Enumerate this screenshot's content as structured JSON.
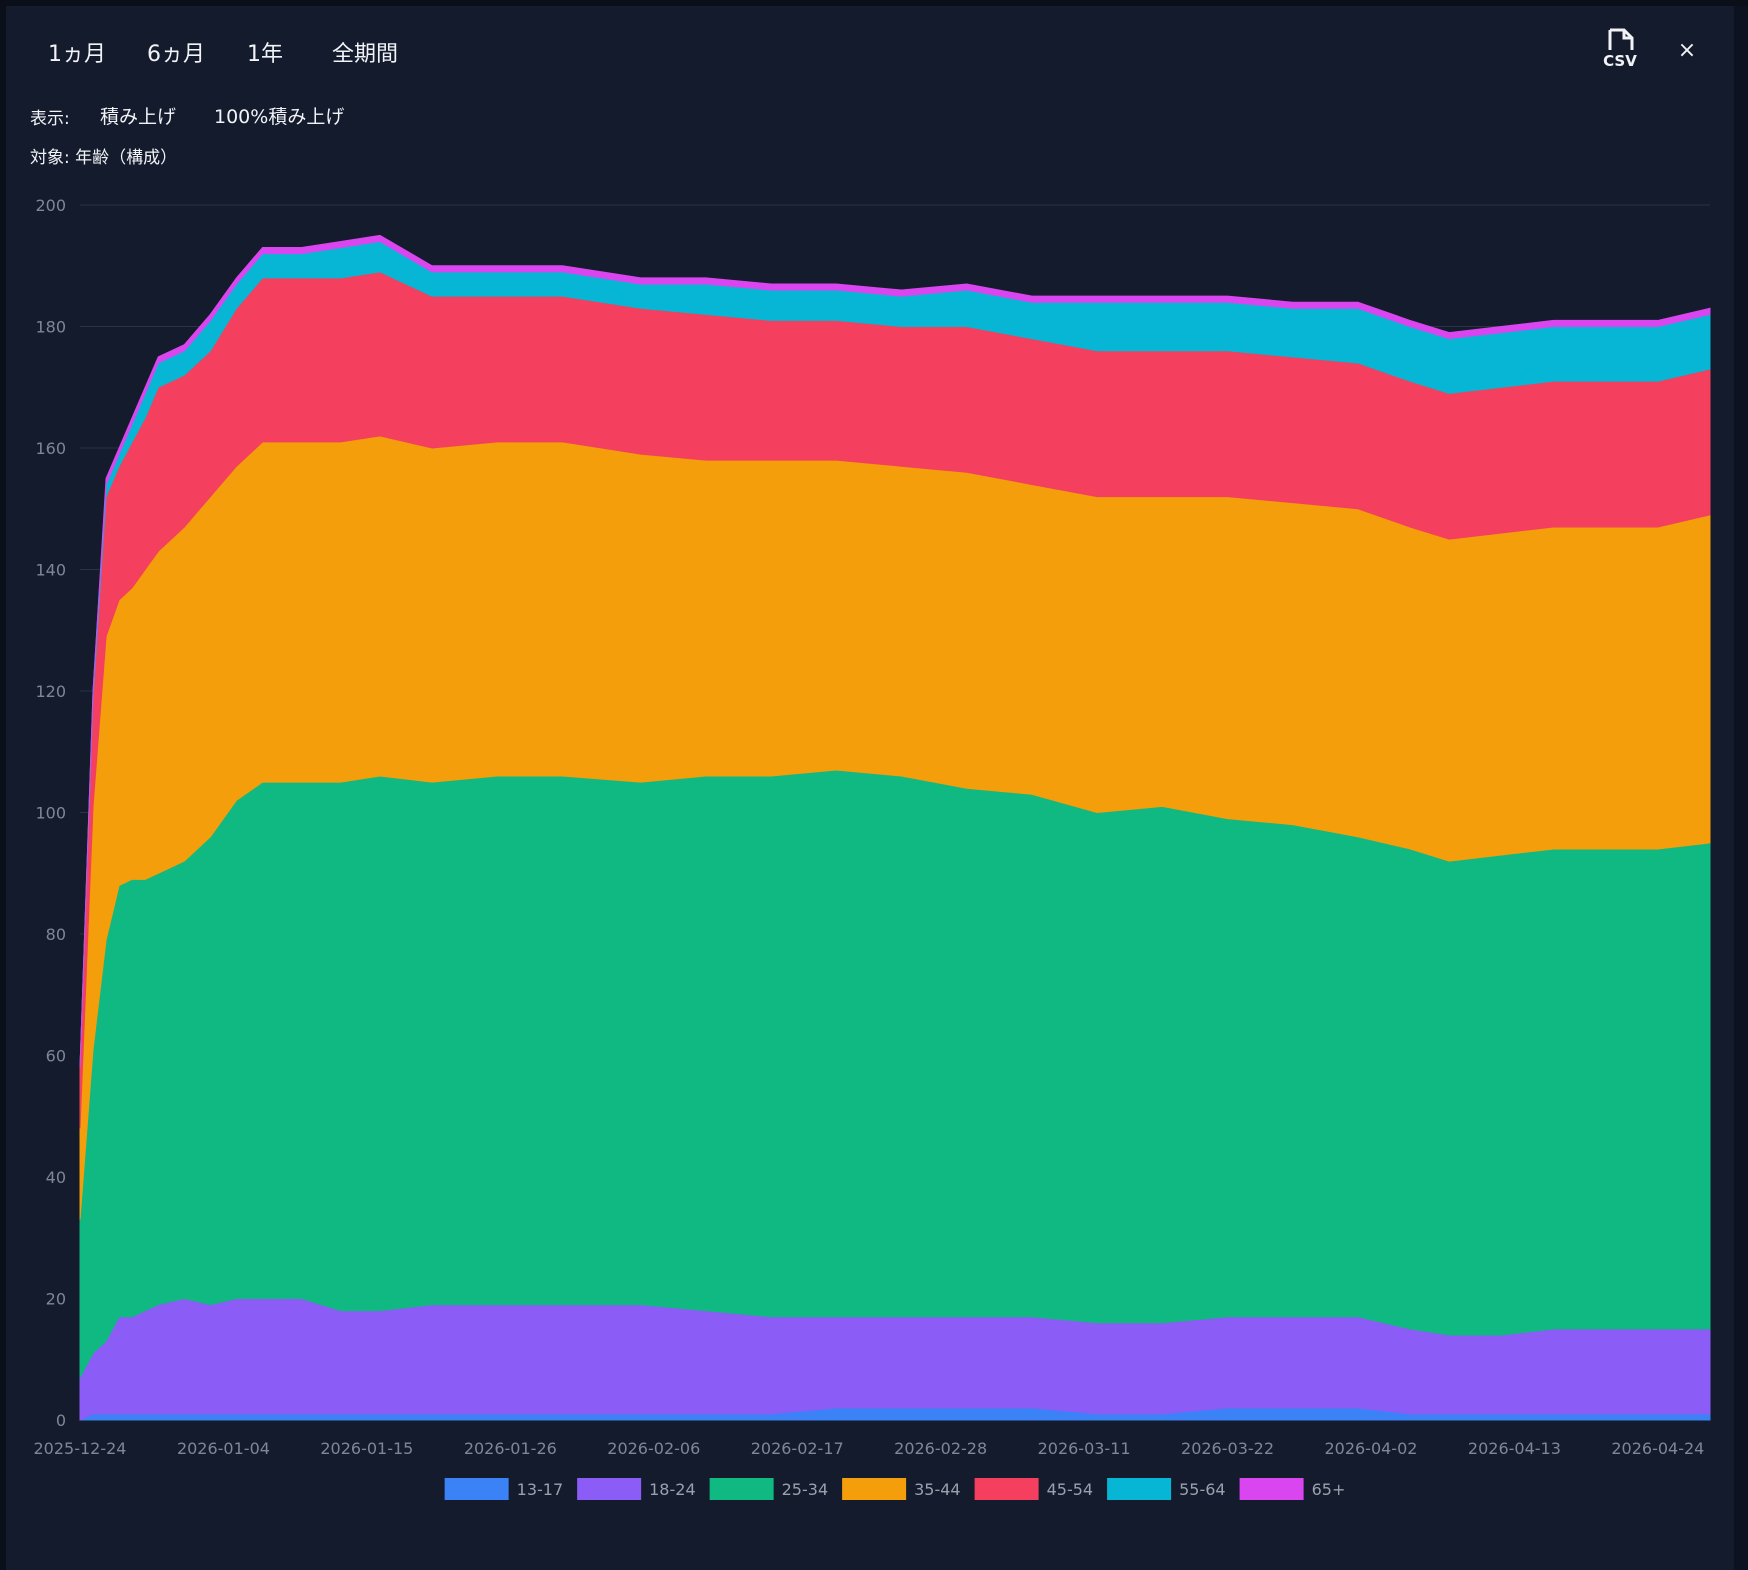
{
  "toolbar": {
    "ranges": [
      "1ヵ月",
      "6ヵ月",
      "1年",
      "全期間"
    ],
    "csv_icon": "csv-file-icon",
    "close_label": "×"
  },
  "display": {
    "label": "表示:",
    "modes": [
      "積み上げ",
      "100%積み上げ"
    ]
  },
  "target": {
    "label": "対象: 年齢（構成）"
  },
  "chart_data": {
    "type": "area",
    "stacked": true,
    "ylim": [
      0,
      200
    ],
    "y_ticks": [
      0,
      20,
      40,
      60,
      80,
      100,
      120,
      140,
      160,
      180,
      200
    ],
    "x_tick_labels": [
      "2025-12-24",
      "2026-01-04",
      "2026-01-15",
      "2026-01-26",
      "2026-02-06",
      "2026-02-17",
      "2026-02-28",
      "2026-03-11",
      "2026-03-22",
      "2026-04-02",
      "2026-04-13",
      "2026-04-24"
    ],
    "x_range": [
      "2025-12-24",
      "2026-04-28"
    ],
    "grid": "horizontal",
    "legend_position": "bottom",
    "x": [
      "2025-12-24",
      "2025-12-25",
      "2025-12-26",
      "2025-12-27",
      "2025-12-28",
      "2025-12-29",
      "2025-12-30",
      "2026-01-01",
      "2026-01-03",
      "2026-01-05",
      "2026-01-07",
      "2026-01-10",
      "2026-01-13",
      "2026-01-16",
      "2026-01-20",
      "2026-01-25",
      "2026-01-30",
      "2026-02-05",
      "2026-02-10",
      "2026-02-15",
      "2026-02-20",
      "2026-02-25",
      "2026-03-02",
      "2026-03-07",
      "2026-03-12",
      "2026-03-17",
      "2026-03-22",
      "2026-03-27",
      "2026-04-01",
      "2026-04-05",
      "2026-04-08",
      "2026-04-12",
      "2026-04-16",
      "2026-04-20",
      "2026-04-24",
      "2026-04-28"
    ],
    "series": [
      {
        "name": "13-17",
        "color": "#3b82f6",
        "values": [
          0,
          1,
          1,
          1,
          1,
          1,
          1,
          1,
          1,
          1,
          1,
          1,
          1,
          1,
          1,
          1,
          1,
          1,
          1,
          1,
          2,
          2,
          2,
          2,
          1,
          1,
          2,
          2,
          2,
          1,
          1,
          1,
          1,
          1,
          1,
          1
        ]
      },
      {
        "name": "18-24",
        "color": "#8b5cf6",
        "values": [
          7,
          10,
          12,
          16,
          16,
          17,
          18,
          19,
          18,
          19,
          19,
          19,
          17,
          17,
          18,
          18,
          18,
          18,
          17,
          16,
          15,
          15,
          15,
          15,
          15,
          15,
          15,
          15,
          15,
          14,
          13,
          13,
          14,
          14,
          14,
          14
        ]
      },
      {
        "name": "25-34",
        "color": "#10b981",
        "values": [
          26,
          50,
          66,
          71,
          72,
          71,
          71,
          72,
          77,
          82,
          85,
          85,
          87,
          88,
          86,
          87,
          87,
          86,
          88,
          89,
          90,
          89,
          87,
          86,
          84,
          85,
          82,
          81,
          79,
          79,
          78,
          79,
          79,
          79,
          79,
          80
        ]
      },
      {
        "name": "35-44",
        "color": "#f59e0b",
        "values": [
          15,
          40,
          50,
          47,
          48,
          51,
          53,
          55,
          56,
          55,
          56,
          56,
          56,
          56,
          55,
          55,
          55,
          54,
          52,
          52,
          51,
          51,
          52,
          51,
          52,
          51,
          53,
          53,
          54,
          53,
          53,
          53,
          53,
          53,
          53,
          54
        ]
      },
      {
        "name": "45-54",
        "color": "#f43f5e",
        "values": [
          10,
          18,
          23,
          22,
          24,
          25,
          27,
          25,
          24,
          26,
          27,
          27,
          27,
          27,
          25,
          24,
          24,
          24,
          24,
          23,
          23,
          23,
          24,
          24,
          24,
          24,
          24,
          24,
          24,
          24,
          24,
          24,
          24,
          24,
          24,
          24
        ]
      },
      {
        "name": "55-64",
        "color": "#06b6d4",
        "values": [
          0,
          1,
          2,
          2,
          3,
          4,
          4,
          4,
          5,
          4,
          4,
          4,
          5,
          5,
          4,
          4,
          4,
          4,
          5,
          5,
          5,
          5,
          6,
          6,
          8,
          8,
          8,
          8,
          9,
          9,
          9,
          9,
          9,
          9,
          9,
          9
        ]
      },
      {
        "name": "65+",
        "color": "#d946ef",
        "values": [
          0,
          0,
          1,
          1,
          1,
          1,
          1,
          1,
          1,
          1,
          1,
          1,
          1,
          1,
          1,
          1,
          1,
          1,
          1,
          1,
          1,
          1,
          1,
          1,
          1,
          1,
          1,
          1,
          1,
          1,
          1,
          1,
          1,
          1,
          1,
          1
        ]
      }
    ]
  }
}
